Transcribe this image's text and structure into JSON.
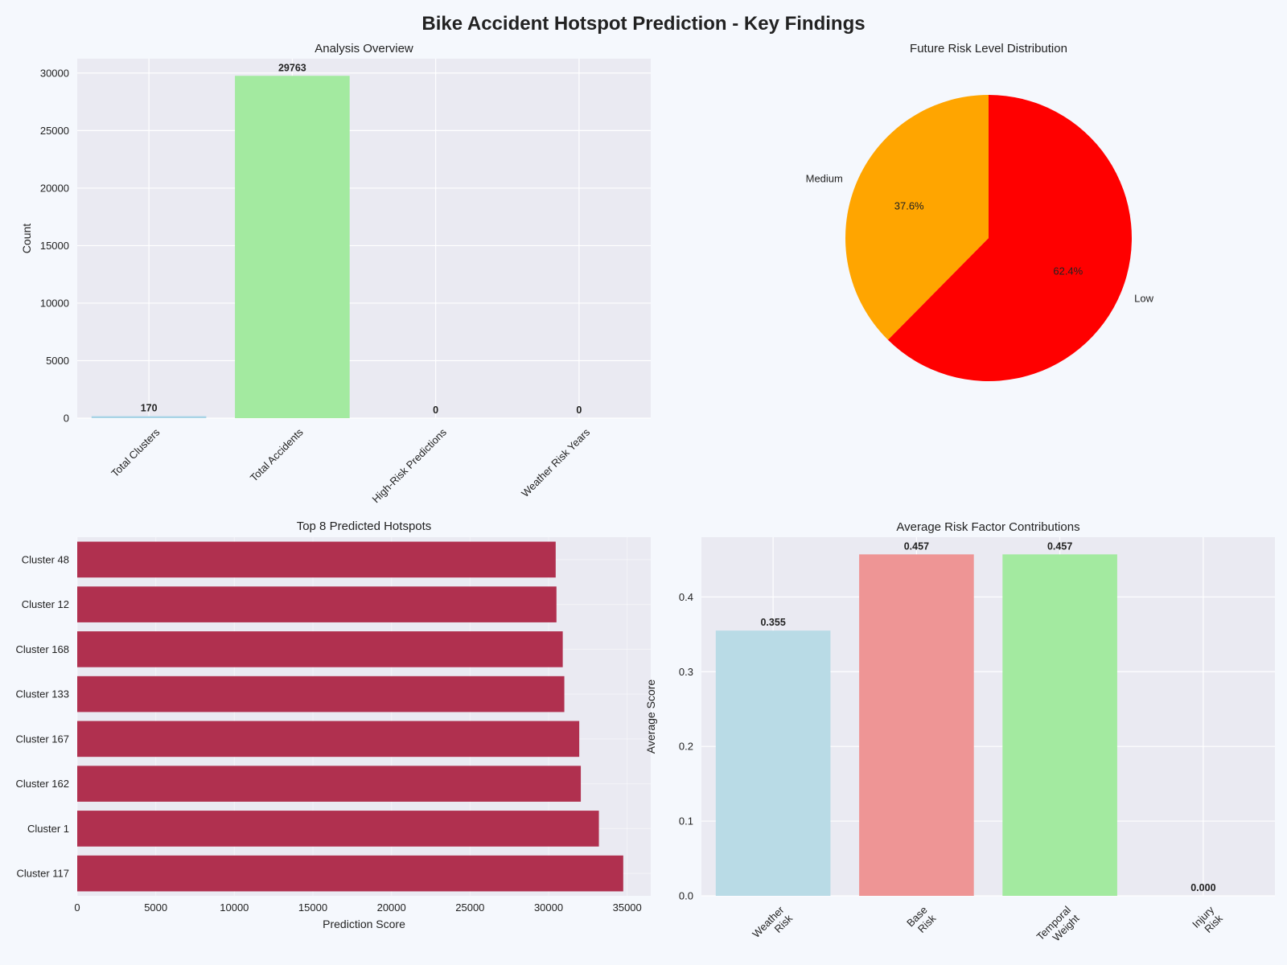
{
  "page": {
    "title": "Bike Accident Hotspot Prediction - Key Findings"
  },
  "colors": {
    "plot_bg": "#eaeaf2",
    "grid": "#ffffff",
    "hotspot_bar": "#b0304f",
    "pie_low": "#ff0000",
    "pie_medium": "#ffa500"
  },
  "chart_data": [
    {
      "id": "overview",
      "type": "bar",
      "title": "Analysis Overview",
      "xlabel": "",
      "ylabel": "Count",
      "categories": [
        "Total Clusters",
        "Total Accidents",
        "High-Risk Predictions",
        "Weather Risk Years"
      ],
      "values": [
        170,
        29763,
        0,
        0
      ],
      "value_labels": [
        "170",
        "29763",
        "0",
        "0"
      ],
      "colors": [
        "#a9d4e6",
        "#a3eaa0",
        "#f4a5a5",
        "#ffd79a"
      ],
      "ylim": [
        0,
        31250
      ],
      "yticks": [
        0,
        5000,
        10000,
        15000,
        20000,
        25000,
        30000
      ],
      "grid": true
    },
    {
      "id": "risk_distribution",
      "type": "pie",
      "title": "Future Risk Level Distribution",
      "labels": [
        "Medium",
        "Low"
      ],
      "values": [
        37.6,
        62.4
      ],
      "pct_labels": [
        "37.6%",
        "62.4%"
      ],
      "colors": [
        "#ffa500",
        "#ff0000"
      ]
    },
    {
      "id": "top_hotspots",
      "type": "bar",
      "orientation": "horizontal",
      "title": "Top 8 Predicted Hotspots",
      "xlabel": "Prediction Score",
      "ylabel": "",
      "categories": [
        "Cluster 117",
        "Cluster 1",
        "Cluster 162",
        "Cluster 167",
        "Cluster 133",
        "Cluster 168",
        "Cluster 12",
        "Cluster 48"
      ],
      "values": [
        34750,
        33200,
        32050,
        31950,
        31000,
        30900,
        30500,
        30450
      ],
      "xlim": [
        0,
        36500
      ],
      "xticks": [
        0,
        5000,
        10000,
        15000,
        20000,
        25000,
        30000,
        35000
      ],
      "grid": true
    },
    {
      "id": "risk_factors",
      "type": "bar",
      "title": "Average Risk Factor Contributions",
      "xlabel": "",
      "ylabel": "Average Score",
      "categories": [
        [
          "Weather",
          "Risk"
        ],
        [
          "Base",
          "Risk"
        ],
        [
          "Temporal",
          "Weight"
        ],
        [
          "Injury",
          "Risk"
        ]
      ],
      "values": [
        0.355,
        0.457,
        0.457,
        0.0
      ],
      "value_labels": [
        "0.355",
        "0.457",
        "0.457",
        "0.000"
      ],
      "colors": [
        "#b9dbe6",
        "#ee9595",
        "#a3eaa0",
        "#e6c8ee"
      ],
      "ylim": [
        0,
        0.48
      ],
      "yticks": [
        0.0,
        0.1,
        0.2,
        0.3,
        0.4
      ],
      "ytick_labels": [
        "0.0",
        "0.1",
        "0.2",
        "0.3",
        "0.4"
      ],
      "grid": true
    }
  ]
}
